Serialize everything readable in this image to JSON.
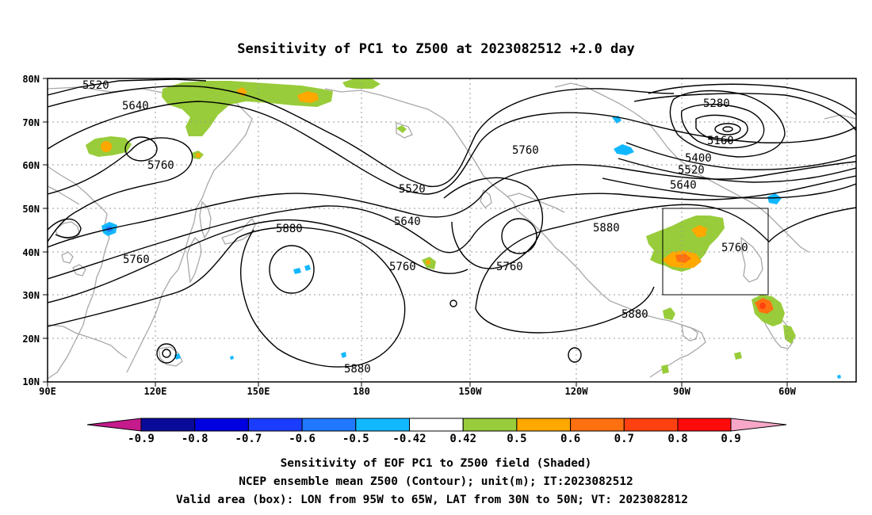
{
  "title": "Sensitivity of PC1 to Z500 at 2023082512 +2.0 day",
  "lat_labels": [
    "80N",
    "70N",
    "60N",
    "50N",
    "40N",
    "30N",
    "20N",
    "10N"
  ],
  "lon_labels": [
    "90E",
    "120E",
    "150E",
    "180",
    "150W",
    "120W",
    "90W",
    "60W"
  ],
  "colorbar": {
    "labels": [
      "-0.9",
      "-0.8",
      "-0.7",
      "-0.6",
      "-0.5",
      "-0.42",
      "0.42",
      "0.5",
      "0.6",
      "0.7",
      "0.8",
      "0.9"
    ],
    "colors": [
      "#c41a8c",
      "#0a0a9a",
      "#0000e0",
      "#1a3cff",
      "#1f78ff",
      "#12b8ff",
      "#ffffff",
      "#98cc3a",
      "#ffa800",
      "#ff7010",
      "#ff4010",
      "#ff0a0a",
      "#f7a7c8"
    ]
  },
  "contour_labels": [
    "5520",
    "5640",
    "5760",
    "5520",
    "5640",
    "5760",
    "5880",
    "5760",
    "5280",
    "5160",
    "5400",
    "5520",
    "5640",
    "5880",
    "5760",
    "5880",
    "5760",
    "5880",
    "5760"
  ],
  "valid_box": {
    "lon": [
      -95,
      -65
    ],
    "lat": [
      30,
      50
    ]
  },
  "captions": {
    "line1": "Sensitivity of EOF PC1 to Z500 field (Shaded)",
    "line2": "NCEP ensemble mean Z500 (Contour); unit(m); IT:2023082512",
    "line3": "Valid area (box): LON from 95W to 65W, LAT from 30N to 50N; VT: 2023082812"
  }
}
